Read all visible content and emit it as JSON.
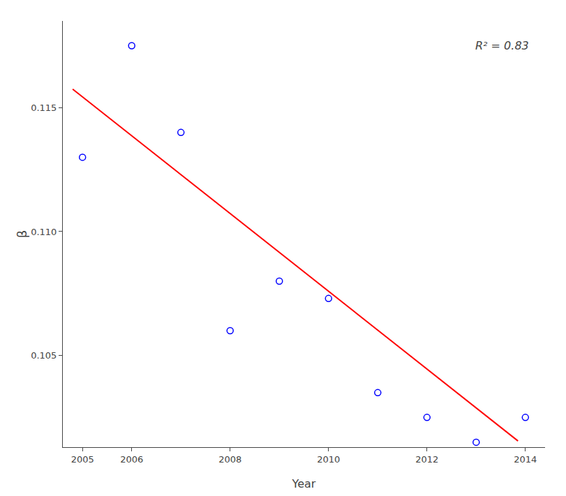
{
  "chart_data": {
    "type": "scatter",
    "xlabel": "Year",
    "ylabel": "β",
    "annotations": [
      "R² = 0.83"
    ],
    "series": [
      {
        "type": "scatter",
        "marker": "open circle",
        "color": "blue",
        "x": [
          2005,
          2006,
          2007,
          2008,
          2009,
          2010,
          2011,
          2012,
          2013,
          2014
        ],
        "values": [
          0.113,
          0.1175,
          0.114,
          0.106,
          0.108,
          0.1073,
          0.1035,
          0.1025,
          0.1015,
          0.1025
        ]
      },
      {
        "type": "line",
        "line_style": "solid",
        "color": "red",
        "x": [
          2004.8,
          2013.85
        ],
        "values": [
          0.11575,
          0.10155
        ]
      }
    ],
    "xlim": [
      2004.6,
      2014.4
    ],
    "ylim": [
      0.1013,
      0.1185
    ],
    "xticks": [
      2005,
      2006,
      2008,
      2010,
      2012,
      2014
    ],
    "yticks": [
      0.105,
      {
        "value": 0.11,
        "label": "0.110"
      },
      0.115
    ],
    "grid": false
  }
}
